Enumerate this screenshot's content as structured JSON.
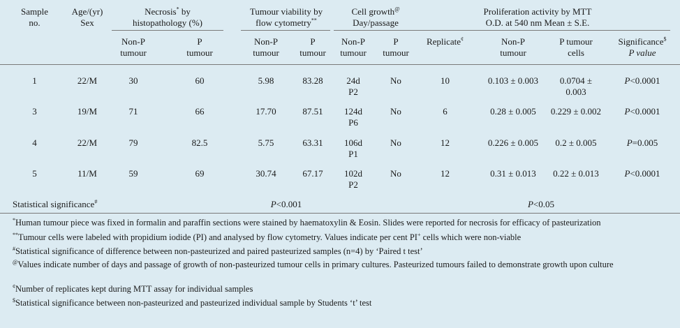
{
  "header": {
    "sample": [
      "Sample",
      "no."
    ],
    "age": [
      "Age/(yr)",
      "Sex"
    ],
    "necrosis": [
      "Necrosis",
      "*",
      " by",
      "histopathology (%)"
    ],
    "viability": [
      "Tumour viability by",
      "flow cytometry",
      "**"
    ],
    "growth": [
      "Cell growth",
      "@",
      "Day/passage"
    ],
    "mtt": [
      "Proliferation activity by MTT",
      "O.D. at 540 nm Mean ± S.E."
    ],
    "sub": {
      "nonp_tumour": [
        "Non-P",
        "tumour"
      ],
      "p_tumour": [
        "P",
        "tumour"
      ],
      "replicate": "Replicate",
      "replicate_mark": "¢",
      "p_tumour_cells": [
        "P tumour",
        "cells"
      ],
      "significance": "Significance",
      "significance_mark": "$",
      "pvalue": "P value"
    }
  },
  "rows": [
    {
      "sample": "1",
      "age": "22/M",
      "nec_np": "30",
      "nec_p": "60",
      "via_np": "5.98",
      "via_p": "83.28",
      "growth_day": "24d",
      "growth_pass": "P2",
      "growth_p": "No",
      "replicate": "10",
      "mtt_np": "0.103 ± 0.003",
      "mtt_p": "0.0704 ±",
      "mtt_p2": "0.003",
      "sig_p": "P",
      "sig_rest": "<0.0001"
    },
    {
      "sample": "3",
      "age": "19/M",
      "nec_np": "71",
      "nec_p": "66",
      "via_np": "17.70",
      "via_p": "87.51",
      "growth_day": "124d",
      "growth_pass": "P6",
      "growth_p": "No",
      "replicate": "6",
      "mtt_np": "0.28 ± 0.005",
      "mtt_p": "0.229 ± 0.002",
      "mtt_p2": "",
      "sig_p": "P",
      "sig_rest": "<0.0001"
    },
    {
      "sample": "4",
      "age": "22/M",
      "nec_np": "79",
      "nec_p": "82.5",
      "via_np": "5.75",
      "via_p": "63.31",
      "growth_day": "106d",
      "growth_pass": "P1",
      "growth_p": "No",
      "replicate": "12",
      "mtt_np": "0.226 ± 0.005",
      "mtt_p": "0.2 ± 0.005",
      "mtt_p2": "",
      "sig_p": "P",
      "sig_rest": "=0.005"
    },
    {
      "sample": "5",
      "age": "11/M",
      "nec_np": "59",
      "nec_p": "69",
      "via_np": "30.74",
      "via_p": "67.17",
      "growth_day": "102d",
      "growth_pass": "P2",
      "growth_p": "No",
      "replicate": "12",
      "mtt_np": "0.31 ± 0.013",
      "mtt_p": "0.22 ± 0.013",
      "mtt_p2": "",
      "sig_p": "P",
      "sig_rest": "<0.0001"
    }
  ],
  "stat_row": {
    "label": "Statistical significance",
    "label_mark": "#",
    "nec_via_p": "P",
    "nec_via_rest": "<0.001",
    "mtt_p": "P",
    "mtt_rest": "<0.05"
  },
  "footnotes": {
    "f1_mark": "*",
    "f1": "Human tumour piece was fixed in formalin and paraffin sections were stained by haematoxylin & Eosin. Slides were reported for necrosis for efficacy of pasteurization",
    "f2_mark": "**",
    "f2a": "Tumour cells were labeled with propidium iodide (PI) and analysed by flow cytometry. Values indicate per cent PI",
    "f2_sup": "+",
    "f2b": " cells which were non-viable",
    "f3_mark": "#",
    "f3": "Statistical significance of difference between non-pasteurized and paired pasteurized samples (n=4) by ‘Paired t test’",
    "f4_mark": "@",
    "f4": "Values indicate number of days and passage of growth of non-pasteurized tumour cells in primary cultures. Pasteurized tumours failed to demonstrate growth upon culture",
    "f5_mark": "¢",
    "f5": "Number of replicates kept during MTT assay for individual samples",
    "f6_mark": "$",
    "f6": "Statistical significance between non-pasteurized and pasteurized individual sample by Students ‘t’ test"
  }
}
